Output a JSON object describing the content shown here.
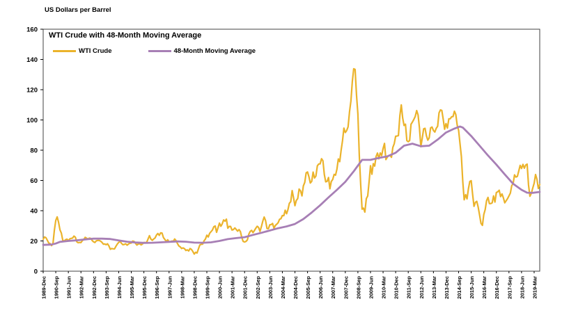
{
  "chart_data": {
    "type": "line",
    "title": "WTI Crude with 48-Month Moving Average",
    "ylabel_top": "US Dollars per Barrel",
    "ylim": [
      0,
      160
    ],
    "y_ticks": [
      0,
      20,
      40,
      60,
      80,
      100,
      120,
      140,
      160
    ],
    "grid": false,
    "legend_position": "top-left-inside",
    "axis_color": "#404040",
    "x_start": "1989-Dec",
    "x_unit": "month",
    "x_months_total": 356,
    "x_tick_every": 9,
    "x_tick_labels": [
      "1989-Dec",
      "1990-Sep",
      "1991-Jun",
      "1992-Mar",
      "1992-Dec",
      "1993-Sep",
      "1994-Jun",
      "1995-Mar",
      "1995-Dec",
      "1996-Sep",
      "1997-Jun",
      "1998-Mar",
      "1998-Dec",
      "1999-Sep",
      "2000-Jun",
      "2001-Mar",
      "2001-Dec",
      "2002-Sep",
      "2003-Jun",
      "2004-Mar",
      "2004-Dec",
      "2005-Sep",
      "2006-Jun",
      "2007-Mar",
      "2007-Dec",
      "2008-Sep",
      "2009-Jun",
      "2010-Mar",
      "2010-Dec",
      "2011-Sep",
      "2012-Jun",
      "2013-Mar",
      "2013-Dec",
      "2014-Sep",
      "2015-Jun",
      "2016-Mar",
      "2016-Dec",
      "2017-Sep",
      "2018-Jun",
      "2019-Mar"
    ],
    "series": [
      {
        "name": "WTI Crude",
        "color": "#EBB32B",
        "frequency": "monthly",
        "values": [
          21.1,
          22.6,
          22.1,
          20.4,
          18.6,
          18.2,
          16.9,
          18.4,
          27.2,
          33.6,
          35.9,
          32.3,
          27.3,
          25.2,
          20.5,
          19.9,
          20.8,
          21.2,
          20.2,
          21.4,
          21.7,
          21.9,
          23.2,
          22.5,
          19.5,
          18.8,
          19.0,
          18.9,
          20.2,
          20.9,
          22.4,
          21.8,
          21.3,
          21.9,
          21.7,
          20.3,
          19.4,
          19.0,
          20.1,
          20.3,
          20.3,
          19.9,
          19.1,
          17.9,
          18.0,
          17.5,
          18.1,
          16.7,
          14.5,
          15.0,
          14.8,
          14.7,
          16.4,
          17.9,
          19.1,
          19.7,
          18.4,
          17.5,
          17.7,
          18.1,
          17.2,
          18.0,
          18.5,
          18.6,
          19.9,
          19.7,
          18.4,
          17.3,
          18.0,
          18.2,
          17.4,
          18.0,
          19.0,
          18.9,
          19.1,
          21.3,
          23.5,
          21.2,
          20.4,
          21.3,
          22.0,
          23.9,
          24.9,
          23.7,
          25.4,
          25.2,
          22.2,
          21.0,
          19.7,
          20.8,
          19.3,
          19.6,
          19.9,
          19.8,
          21.3,
          20.2,
          18.3,
          16.7,
          16.1,
          15.0,
          15.4,
          14.9,
          13.7,
          14.1,
          13.4,
          15.0,
          14.4,
          13.0,
          11.3,
          12.5,
          12.0,
          14.7,
          17.3,
          17.8,
          17.9,
          20.1,
          21.3,
          23.8,
          22.6,
          25.0,
          26.1,
          27.2,
          29.4,
          29.9,
          25.7,
          28.8,
          31.8,
          29.7,
          31.3,
          33.9,
          33.1,
          34.4,
          28.4,
          29.6,
          29.6,
          27.2,
          27.5,
          28.6,
          27.6,
          26.5,
          27.5,
          26.2,
          22.2,
          19.7,
          19.3,
          19.7,
          20.7,
          24.4,
          26.3,
          27.0,
          25.5,
          26.9,
          28.4,
          29.7,
          28.9,
          26.3,
          29.4,
          33.0,
          35.8,
          33.5,
          28.2,
          28.1,
          30.7,
          30.8,
          31.6,
          28.3,
          30.3,
          31.1,
          32.1,
          34.3,
          34.7,
          36.8,
          36.7,
          40.3,
          38.0,
          40.8,
          44.9,
          46.0,
          53.3,
          48.5,
          43.3,
          46.8,
          48.0,
          54.3,
          53.0,
          49.8,
          56.4,
          58.7,
          65.0,
          65.6,
          62.4,
          58.3,
          59.4,
          65.5,
          61.6,
          62.9,
          69.7,
          70.9,
          71.0,
          74.4,
          73.0,
          63.9,
          59.1,
          59.4,
          62.0,
          54.5,
          59.3,
          60.6,
          64.0,
          63.5,
          67.5,
          74.2,
          72.4,
          79.9,
          86.2,
          94.6,
          91.7,
          93.0,
          95.4,
          105.5,
          112.6,
          125.4,
          133.9,
          133.4,
          116.6,
          103.9,
          76.7,
          57.4,
          41.0,
          41.7,
          39.1,
          48.0,
          49.8,
          59.2,
          69.7,
          64.1,
          71.1,
          69.5,
          75.8,
          78.1,
          74.3,
          78.2,
          76.4,
          81.2,
          84.5,
          73.8,
          75.4,
          76.4,
          76.6,
          75.3,
          81.9,
          84.3,
          89.2,
          89.4,
          89.6,
          103.0,
          110.0,
          101.3,
          96.3,
          97.2,
          86.3,
          85.6,
          86.4,
          97.2,
          98.6,
          100.3,
          102.3,
          106.2,
          103.3,
          94.7,
          82.3,
          87.9,
          94.1,
          94.5,
          89.5,
          86.6,
          88.2,
          94.8,
          95.3,
          93.0,
          92.0,
          94.5,
          95.8,
          104.7,
          106.6,
          106.3,
          100.5,
          93.9,
          97.6,
          94.6,
          100.8,
          100.8,
          102.1,
          102.2,
          105.8,
          103.6,
          96.5,
          93.2,
          84.4,
          75.8,
          59.3,
          47.2,
          50.6,
          47.8,
          54.5,
          59.3,
          59.8,
          50.9,
          42.9,
          45.5,
          46.2,
          42.4,
          37.2,
          31.7,
          30.3,
          37.5,
          40.8,
          46.7,
          48.8,
          44.7,
          44.7,
          45.2,
          49.8,
          45.7,
          52.0,
          52.5,
          53.5,
          49.3,
          51.1,
          48.5,
          45.2,
          46.6,
          48.0,
          49.8,
          51.6,
          56.6,
          57.9,
          63.7,
          62.2,
          62.7,
          66.3,
          70.0,
          67.9,
          70.6,
          68.1,
          70.2,
          70.8,
          57.0,
          49.5,
          51.4,
          55.0,
          58.2,
          63.9,
          60.8,
          54.7,
          57.4
        ]
      },
      {
        "name": "48-Month Moving Average",
        "color": "#A77FB5",
        "frequency": "keypoints-month-value",
        "points": [
          [
            0,
            17.4
          ],
          [
            6,
            17.6
          ],
          [
            9,
            18.3
          ],
          [
            12,
            19.4
          ],
          [
            18,
            20.0
          ],
          [
            24,
            20.4
          ],
          [
            30,
            21.0
          ],
          [
            36,
            21.5
          ],
          [
            42,
            21.5
          ],
          [
            48,
            21.3
          ],
          [
            54,
            20.3
          ],
          [
            60,
            19.5
          ],
          [
            66,
            19.0
          ],
          [
            72,
            18.7
          ],
          [
            78,
            18.8
          ],
          [
            84,
            19.1
          ],
          [
            90,
            19.4
          ],
          [
            96,
            19.7
          ],
          [
            102,
            19.5
          ],
          [
            108,
            18.9
          ],
          [
            114,
            18.8
          ],
          [
            120,
            19.1
          ],
          [
            126,
            20.0
          ],
          [
            132,
            21.2
          ],
          [
            138,
            21.9
          ],
          [
            144,
            22.5
          ],
          [
            150,
            24.0
          ],
          [
            156,
            25.4
          ],
          [
            162,
            26.9
          ],
          [
            168,
            28.4
          ],
          [
            174,
            29.6
          ],
          [
            180,
            31.2
          ],
          [
            186,
            34.5
          ],
          [
            192,
            38.8
          ],
          [
            198,
            43.6
          ],
          [
            204,
            48.8
          ],
          [
            210,
            53.8
          ],
          [
            216,
            59.1
          ],
          [
            222,
            66.0
          ],
          [
            228,
            73.6
          ],
          [
            234,
            73.6
          ],
          [
            240,
            74.9
          ],
          [
            246,
            75.9
          ],
          [
            252,
            78.3
          ],
          [
            258,
            83.0
          ],
          [
            264,
            84.3
          ],
          [
            270,
            82.6
          ],
          [
            276,
            83.0
          ],
          [
            282,
            87.0
          ],
          [
            288,
            91.7
          ],
          [
            294,
            94.3
          ],
          [
            298,
            95.7
          ],
          [
            300,
            95.0
          ],
          [
            306,
            89.4
          ],
          [
            312,
            83.0
          ],
          [
            318,
            76.5
          ],
          [
            324,
            70.5
          ],
          [
            330,
            64.0
          ],
          [
            336,
            57.8
          ],
          [
            342,
            53.8
          ],
          [
            346,
            51.9
          ],
          [
            350,
            51.8
          ],
          [
            355,
            52.4
          ]
        ]
      }
    ]
  }
}
